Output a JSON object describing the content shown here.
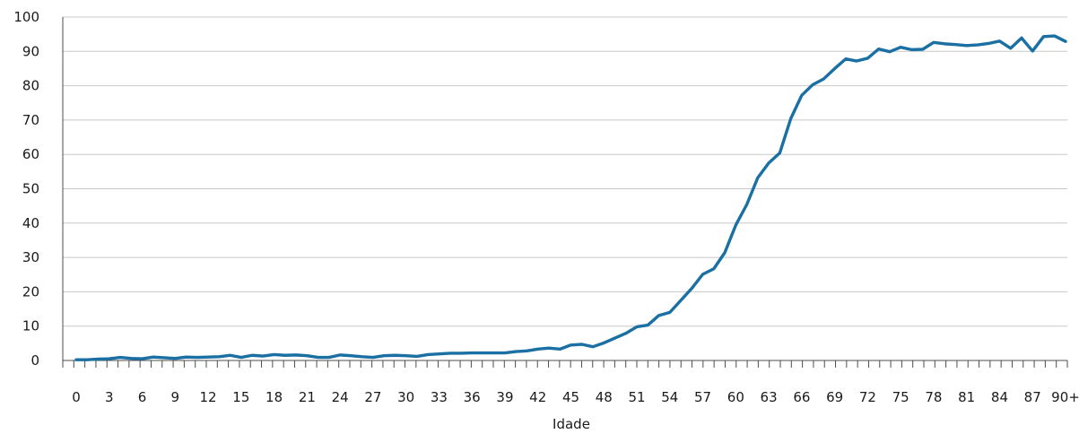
{
  "chart_data": {
    "type": "line",
    "title": "",
    "xlabel": "Idade",
    "ylabel": "",
    "ylim": [
      0,
      100
    ],
    "yticks": [
      0,
      10,
      20,
      30,
      40,
      50,
      60,
      70,
      80,
      90,
      100
    ],
    "grid": true,
    "categories": [
      "0",
      "1",
      "2",
      "3",
      "4",
      "5",
      "6",
      "7",
      "8",
      "9",
      "10",
      "11",
      "12",
      "13",
      "14",
      "15",
      "16",
      "17",
      "18",
      "19",
      "20",
      "21",
      "22",
      "23",
      "24",
      "25",
      "26",
      "27",
      "28",
      "29",
      "30",
      "31",
      "32",
      "33",
      "34",
      "35",
      "36",
      "37",
      "38",
      "39",
      "40",
      "41",
      "42",
      "43",
      "44",
      "45",
      "46",
      "47",
      "48",
      "49",
      "50",
      "51",
      "52",
      "53",
      "54",
      "55",
      "56",
      "57",
      "58",
      "59",
      "60",
      "61",
      "62",
      "63",
      "64",
      "65",
      "66",
      "67",
      "68",
      "69",
      "70",
      "71",
      "72",
      "73",
      "74",
      "75",
      "76",
      "77",
      "78",
      "79",
      "80",
      "81",
      "82",
      "83",
      "84",
      "85",
      "86",
      "87",
      "88",
      "89",
      "90+"
    ],
    "xtick_labels": [
      "0",
      "3",
      "6",
      "9",
      "12",
      "15",
      "18",
      "21",
      "24",
      "27",
      "30",
      "33",
      "36",
      "39",
      "42",
      "45",
      "48",
      "51",
      "54",
      "57",
      "60",
      "63",
      "66",
      "69",
      "72",
      "75",
      "78",
      "81",
      "84",
      "87",
      "90+"
    ],
    "series": [
      {
        "color": "#1a6fa3",
        "values": [
          0.2,
          0.2,
          0.4,
          0.5,
          0.9,
          0.6,
          0.5,
          1.0,
          0.8,
          0.6,
          1.0,
          0.9,
          1.0,
          1.1,
          1.5,
          0.9,
          1.5,
          1.3,
          1.7,
          1.5,
          1.6,
          1.4,
          0.9,
          0.9,
          1.6,
          1.4,
          1.1,
          0.9,
          1.4,
          1.5,
          1.4,
          1.2,
          1.7,
          1.9,
          2.1,
          2.1,
          2.2,
          2.2,
          2.2,
          2.2,
          2.6,
          2.8,
          3.3,
          3.6,
          3.3,
          4.5,
          4.7,
          4.0,
          5.1,
          6.5,
          7.9,
          9.8,
          10.3,
          13.1,
          14.0,
          17.5,
          21.0,
          25.1,
          26.7,
          31.4,
          39.4,
          45.4,
          53.2,
          57.5,
          60.4,
          70.4,
          77.2,
          80.3,
          82.0,
          85.0,
          87.8,
          87.2,
          88.0,
          90.7,
          89.9,
          91.2,
          90.5,
          90.6,
          92.6,
          92.2,
          92.0,
          91.7,
          91.9,
          92.3,
          93.0,
          90.9,
          93.9,
          90.1,
          94.3,
          94.5,
          92.9
        ]
      }
    ]
  }
}
